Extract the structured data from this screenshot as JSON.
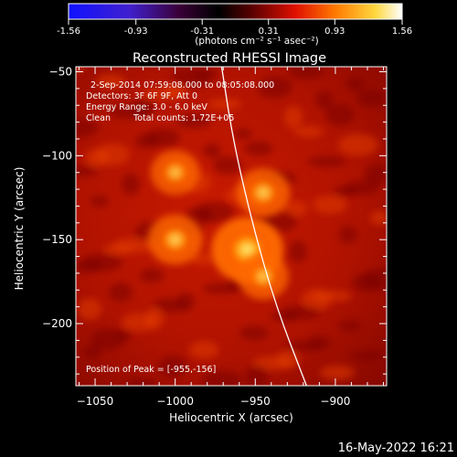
{
  "colorbar": {
    "ticks": [
      "-1.56",
      "-0.93",
      "-0.31",
      "0.31",
      "0.93",
      "1.56"
    ],
    "tick_values": [
      -1.56,
      -0.93,
      -0.31,
      0.31,
      0.93,
      1.56
    ],
    "unit_label": "(photons cm⁻² s⁻¹ asec⁻²)"
  },
  "chart_data": {
    "type": "heatmap",
    "title": "Reconstructed RHESSI Image",
    "xlabel": "Heliocentric X (arcsec)",
    "ylabel": "Heliocentric Y (arcsec)",
    "xlim": [
      -1062,
      -868
    ],
    "ylim": [
      -237,
      -47
    ],
    "x_ticks": [
      -1050,
      -1000,
      -950,
      -900
    ],
    "y_ticks": [
      -50,
      -100,
      -150,
      -200
    ],
    "x_tick_labels": [
      "−1050",
      "−1000",
      "−950",
      "−900"
    ],
    "y_tick_labels": [
      "−50",
      "−100",
      "−150",
      "−200"
    ],
    "sources": [
      {
        "x": -955,
        "y": -156,
        "peak": 1.56
      },
      {
        "x": -1000,
        "y": -150,
        "peak": 0.95
      },
      {
        "x": -945,
        "y": -122,
        "peak": 0.9
      },
      {
        "x": -1000,
        "y": -110,
        "peak": 0.75
      },
      {
        "x": -945,
        "y": -172,
        "peak": 0.8
      }
    ],
    "limb_curve": [
      {
        "x": -971,
        "y": -47
      },
      {
        "x": -964,
        "y": -90
      },
      {
        "x": -952,
        "y": -140
      },
      {
        "x": -937,
        "y": -190
      },
      {
        "x": -918,
        "y": -237
      }
    ],
    "info": {
      "date_range": "2-Sep-2014 07:59:08.000 to 08:05:08.000",
      "detectors": "Detectors: 3F 6F 9F, Att 0",
      "energy": "Energy Range: 3.0 - 6.0 keV",
      "algorithm": "Clean",
      "counts": "Total counts: 1.72E+05",
      "peak_position": "Position of Peak = [-955,-156]"
    }
  },
  "footer": {
    "timestamp": "16-May-2022 16:21"
  }
}
